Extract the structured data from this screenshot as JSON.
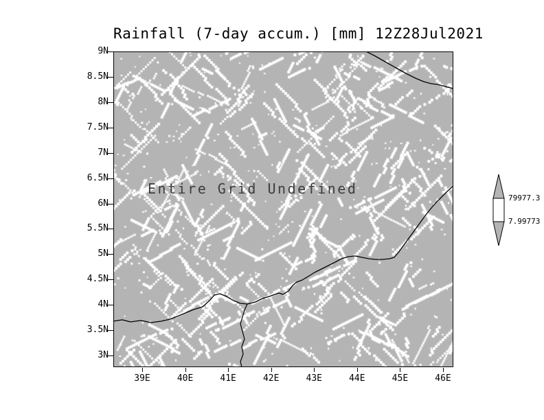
{
  "title": "Rainfall (7-day accum.) [mm] 12Z28Jul2021",
  "map": {
    "undefined_text": "Entire Grid Undefined",
    "fill_color": "#b4b4b4",
    "speckle_color": "#ffffff",
    "coastline_color": "#000000"
  },
  "axes": {
    "y_ticks": [
      "9N",
      "8.5N",
      "8N",
      "7.5N",
      "7N",
      "6.5N",
      "6N",
      "5.5N",
      "5N",
      "4.5N",
      "4N",
      "3.5N",
      "3N"
    ],
    "x_ticks": [
      "39E",
      "40E",
      "41E",
      "42E",
      "43E",
      "44E",
      "45E",
      "46E"
    ]
  },
  "colorbar": {
    "labels": [
      "79977.3",
      "7.99773"
    ],
    "arrow_fill": "#b4b4b4",
    "segment_fill": "#ffffff"
  },
  "chart_data": {
    "type": "heatmap",
    "title": "Rainfall (7-day accum.) [mm] 12Z28Jul2021",
    "xlabel": "",
    "ylabel": "",
    "x_tick_labels": [
      "39E",
      "40E",
      "41E",
      "42E",
      "43E",
      "44E",
      "45E",
      "46E"
    ],
    "y_tick_labels": [
      "9N",
      "8.5N",
      "8N",
      "7.5N",
      "7N",
      "6.5N",
      "6N",
      "5.5N",
      "5N",
      "4.5N",
      "4N",
      "3.5N",
      "3N"
    ],
    "colorbar_levels": [
      "7.99773",
      "79977.3"
    ],
    "data_status": "Entire Grid Undefined",
    "values": [],
    "legend_position": "right",
    "grid": false
  }
}
